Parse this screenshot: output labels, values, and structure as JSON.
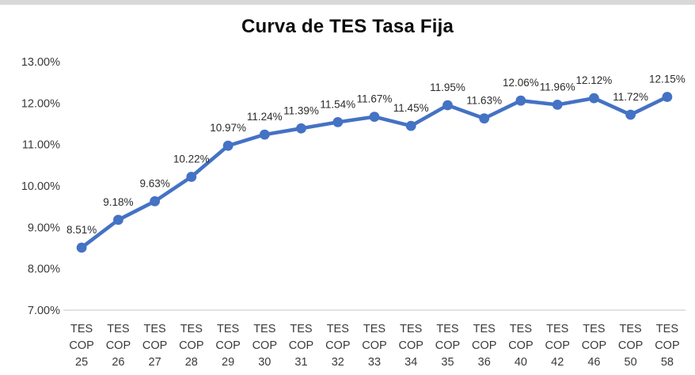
{
  "page": {
    "background": "#ffffff",
    "top_border_color": "#d8d8d8"
  },
  "chart_data": {
    "type": "line",
    "title": "Curva de TES Tasa Fija",
    "categories": [
      "TES COP 25",
      "TES COP 26",
      "TES COP 27",
      "TES COP 28",
      "TES COP 29",
      "TES COP 30",
      "TES COP 31",
      "TES COP 32",
      "TES COP 33",
      "TES COP 34",
      "TES COP 35",
      "TES COP 36",
      "TES COP 40",
      "TES COP 42",
      "TES COP 46",
      "TES COP 50",
      "TES COP 58"
    ],
    "values": [
      8.51,
      9.18,
      9.63,
      10.22,
      10.97,
      11.24,
      11.39,
      11.54,
      11.67,
      11.45,
      11.95,
      11.63,
      12.06,
      11.96,
      12.12,
      11.72,
      12.15
    ],
    "point_labels": [
      "8.51%",
      "9.18%",
      "9.63%",
      "10.22%",
      "10.97%",
      "11.24%",
      "11.39%",
      "11.54%",
      "11.67%",
      "11.45%",
      "11.95%",
      "11.63%",
      "12.06%",
      "11.96%",
      "12.12%",
      "11.72%",
      "12.15%"
    ],
    "y_ticks": [
      "13.00%",
      "12.00%",
      "11.00%",
      "10.00%",
      "9.00%",
      "8.00%",
      "7.00%"
    ],
    "y_tick_values": [
      13,
      12,
      11,
      10,
      9,
      8,
      7
    ],
    "ylim": [
      7,
      13
    ],
    "xlabel": "",
    "ylabel": "",
    "grid": false,
    "legend": "none",
    "colors": {
      "line": "#4472C4",
      "marker": "#4472C4",
      "data_label": "#2b2b2b",
      "axis_line": "#d9d9d9",
      "tick_text": "#3a3a3a",
      "title": "#0c0c0c"
    }
  }
}
